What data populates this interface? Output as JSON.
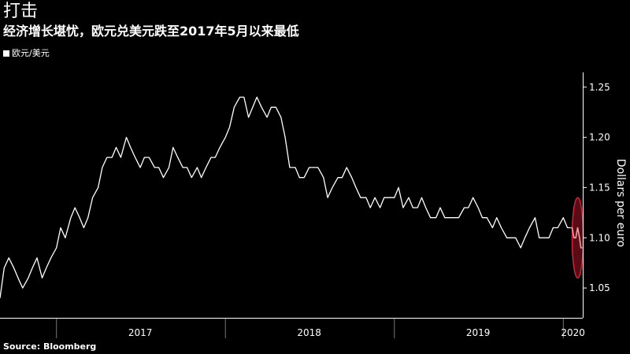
{
  "header": {
    "title": "打击",
    "subtitle": "经济增长堪忧，欧元兑美元跌至2017年5月以来最低"
  },
  "legend": {
    "label": "欧元/美元"
  },
  "source": "Source: Bloomberg",
  "colors": {
    "background": "#000000",
    "line": "#ffffff",
    "highlight_line": "#f0a0a0",
    "highlight_fill": "#7a0f1e",
    "highlight_stroke": "#d2233a"
  },
  "chart_data": {
    "type": "line",
    "title": "打击",
    "subtitle": "经济增长堪忧，欧元兑美元跌至2017年5月以来最低",
    "ylabel": "Dollars per euro",
    "xlabel": "",
    "ylim": [
      1.025,
      1.26
    ],
    "y_ticks": [
      1.05,
      1.1,
      1.15,
      1.2,
      1.25
    ],
    "y_tick_labels": [
      "1.05",
      "1.10",
      "1.15",
      "1.20",
      "1.25"
    ],
    "x_range": [
      "2016-09-01",
      "2020-02-12"
    ],
    "x_year_labels": [
      {
        "label": "2017",
        "center": "2017-07-01"
      },
      {
        "label": "2018",
        "center": "2018-07-01"
      },
      {
        "label": "2019",
        "center": "2019-07-01"
      },
      {
        "label": "2020",
        "center": "2020-01-22"
      }
    ],
    "year_boundaries": [
      "2017-01-01",
      "2018-01-01",
      "2019-01-01",
      "2020-01-01"
    ],
    "grid": false,
    "legend_position": "top-left",
    "series": [
      {
        "name": "欧元/美元",
        "points": [
          [
            "2016-09-01",
            1.04
          ],
          [
            "2016-09-10",
            1.07
          ],
          [
            "2016-09-20",
            1.08
          ],
          [
            "2016-10-01",
            1.07
          ],
          [
            "2016-10-10",
            1.06
          ],
          [
            "2016-10-20",
            1.05
          ],
          [
            "2016-11-01",
            1.06
          ],
          [
            "2016-11-10",
            1.07
          ],
          [
            "2016-11-20",
            1.08
          ],
          [
            "2016-12-01",
            1.06
          ],
          [
            "2016-12-10",
            1.07
          ],
          [
            "2016-12-20",
            1.08
          ],
          [
            "2017-01-01",
            1.09
          ],
          [
            "2017-01-10",
            1.11
          ],
          [
            "2017-01-20",
            1.1
          ],
          [
            "2017-02-01",
            1.12
          ],
          [
            "2017-02-10",
            1.13
          ],
          [
            "2017-02-20",
            1.12
          ],
          [
            "2017-03-01",
            1.11
          ],
          [
            "2017-03-10",
            1.12
          ],
          [
            "2017-03-20",
            1.14
          ],
          [
            "2017-04-01",
            1.15
          ],
          [
            "2017-04-10",
            1.17
          ],
          [
            "2017-04-20",
            1.18
          ],
          [
            "2017-05-01",
            1.18
          ],
          [
            "2017-05-10",
            1.19
          ],
          [
            "2017-05-20",
            1.18
          ],
          [
            "2017-06-01",
            1.2
          ],
          [
            "2017-06-10",
            1.19
          ],
          [
            "2017-06-20",
            1.18
          ],
          [
            "2017-07-01",
            1.17
          ],
          [
            "2017-07-10",
            1.18
          ],
          [
            "2017-07-20",
            1.18
          ],
          [
            "2017-08-01",
            1.17
          ],
          [
            "2017-08-10",
            1.17
          ],
          [
            "2017-08-20",
            1.16
          ],
          [
            "2017-09-01",
            1.17
          ],
          [
            "2017-09-10",
            1.19
          ],
          [
            "2017-09-20",
            1.18
          ],
          [
            "2017-10-01",
            1.17
          ],
          [
            "2017-10-10",
            1.17
          ],
          [
            "2017-10-20",
            1.16
          ],
          [
            "2017-11-01",
            1.17
          ],
          [
            "2017-11-10",
            1.16
          ],
          [
            "2017-11-20",
            1.17
          ],
          [
            "2017-12-01",
            1.18
          ],
          [
            "2017-12-10",
            1.18
          ],
          [
            "2017-12-20",
            1.19
          ],
          [
            "2018-01-01",
            1.2
          ],
          [
            "2018-01-10",
            1.21
          ],
          [
            "2018-01-20",
            1.23
          ],
          [
            "2018-02-01",
            1.24
          ],
          [
            "2018-02-10",
            1.24
          ],
          [
            "2018-02-20",
            1.22
          ],
          [
            "2018-03-01",
            1.23
          ],
          [
            "2018-03-10",
            1.24
          ],
          [
            "2018-03-20",
            1.23
          ],
          [
            "2018-04-01",
            1.22
          ],
          [
            "2018-04-10",
            1.23
          ],
          [
            "2018-04-20",
            1.23
          ],
          [
            "2018-05-01",
            1.22
          ],
          [
            "2018-05-10",
            1.2
          ],
          [
            "2018-05-20",
            1.17
          ],
          [
            "2018-06-01",
            1.17
          ],
          [
            "2018-06-10",
            1.16
          ],
          [
            "2018-06-20",
            1.16
          ],
          [
            "2018-07-01",
            1.17
          ],
          [
            "2018-07-10",
            1.17
          ],
          [
            "2018-07-20",
            1.17
          ],
          [
            "2018-08-01",
            1.16
          ],
          [
            "2018-08-10",
            1.14
          ],
          [
            "2018-08-20",
            1.15
          ],
          [
            "2018-09-01",
            1.16
          ],
          [
            "2018-09-10",
            1.16
          ],
          [
            "2018-09-20",
            1.17
          ],
          [
            "2018-10-01",
            1.16
          ],
          [
            "2018-10-10",
            1.15
          ],
          [
            "2018-10-20",
            1.14
          ],
          [
            "2018-11-01",
            1.14
          ],
          [
            "2018-11-10",
            1.13
          ],
          [
            "2018-11-20",
            1.14
          ],
          [
            "2018-12-01",
            1.13
          ],
          [
            "2018-12-10",
            1.14
          ],
          [
            "2018-12-20",
            1.14
          ],
          [
            "2019-01-01",
            1.14
          ],
          [
            "2019-01-10",
            1.15
          ],
          [
            "2019-01-20",
            1.13
          ],
          [
            "2019-02-01",
            1.14
          ],
          [
            "2019-02-10",
            1.13
          ],
          [
            "2019-02-20",
            1.13
          ],
          [
            "2019-03-01",
            1.14
          ],
          [
            "2019-03-10",
            1.13
          ],
          [
            "2019-03-20",
            1.12
          ],
          [
            "2019-04-01",
            1.12
          ],
          [
            "2019-04-10",
            1.13
          ],
          [
            "2019-04-20",
            1.12
          ],
          [
            "2019-05-01",
            1.12
          ],
          [
            "2019-05-10",
            1.12
          ],
          [
            "2019-05-20",
            1.12
          ],
          [
            "2019-06-01",
            1.13
          ],
          [
            "2019-06-10",
            1.13
          ],
          [
            "2019-06-20",
            1.14
          ],
          [
            "2019-07-01",
            1.13
          ],
          [
            "2019-07-10",
            1.12
          ],
          [
            "2019-07-20",
            1.12
          ],
          [
            "2019-08-01",
            1.11
          ],
          [
            "2019-08-10",
            1.12
          ],
          [
            "2019-08-20",
            1.11
          ],
          [
            "2019-09-01",
            1.1
          ],
          [
            "2019-09-10",
            1.1
          ],
          [
            "2019-09-20",
            1.1
          ],
          [
            "2019-10-01",
            1.09
          ],
          [
            "2019-10-10",
            1.1
          ],
          [
            "2019-10-20",
            1.11
          ],
          [
            "2019-11-01",
            1.12
          ],
          [
            "2019-11-10",
            1.1
          ],
          [
            "2019-11-20",
            1.1
          ],
          [
            "2019-12-01",
            1.1
          ],
          [
            "2019-12-10",
            1.11
          ],
          [
            "2019-12-20",
            1.11
          ],
          [
            "2020-01-01",
            1.12
          ],
          [
            "2020-01-10",
            1.11
          ],
          [
            "2020-01-16",
            1.11
          ]
        ]
      },
      {
        "name": "",
        "highlight": true,
        "points": [
          [
            "2020-01-16",
            1.11
          ],
          [
            "2020-01-20",
            1.11
          ],
          [
            "2020-01-24",
            1.1
          ],
          [
            "2020-01-28",
            1.1
          ],
          [
            "2020-02-01",
            1.11
          ],
          [
            "2020-02-05",
            1.1
          ],
          [
            "2020-02-08",
            1.09
          ],
          [
            "2020-02-11",
            1.09
          ]
        ]
      }
    ],
    "highlight_ellipse": {
      "x_center": "2020-02-01",
      "y_center": 1.1,
      "x_halfwidth_days": 12,
      "y_halfheight": 0.04
    }
  }
}
